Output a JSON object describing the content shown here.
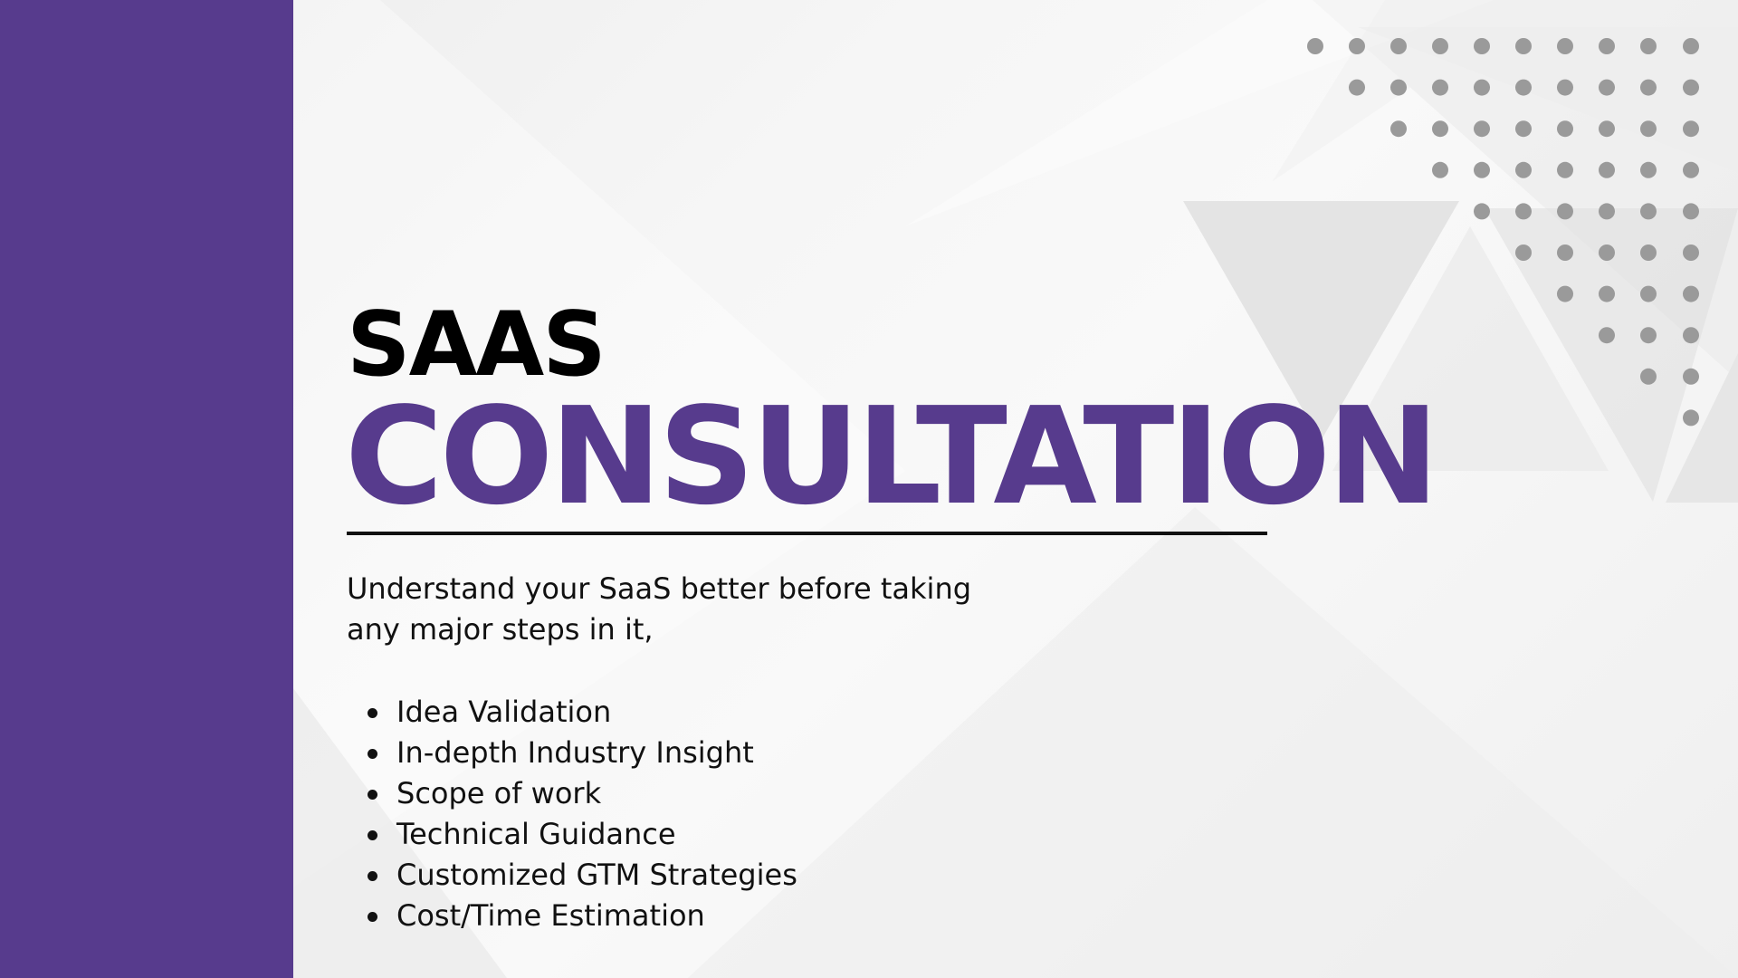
{
  "slide": {
    "title_line1": "SAAS",
    "title_line2": "CONSULTATION",
    "intro_text": "Understand your SaaS better before taking any major steps in it,",
    "services": [
      "Idea Validation",
      "In-depth Industry Insight",
      "Scope of work",
      "Technical Guidance",
      "Customized GTM Strategies",
      "Cost/Time Estimation"
    ]
  },
  "colors": {
    "accent_purple": "#573b8d",
    "text_dark": "#111111",
    "dot_gray": "#9a9a9a",
    "background": "#f3f3f3"
  },
  "decorations": {
    "dot_grid": "gray-dot-triangle-pattern",
    "background_shapes": "light-gray-triangles"
  }
}
